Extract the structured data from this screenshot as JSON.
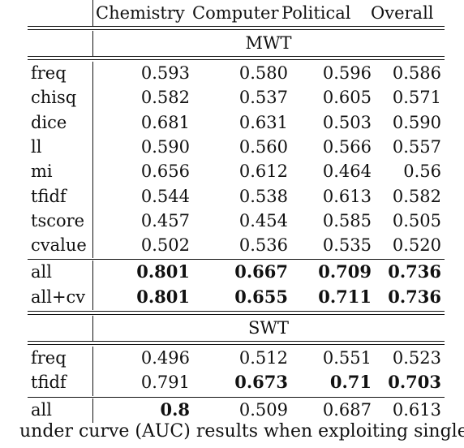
{
  "table": {
    "columns": [
      "Chemistry",
      "Computer",
      "Political",
      "Overall"
    ],
    "sections": [
      {
        "title": "MWT",
        "rows": [
          {
            "label": "freq",
            "values": [
              "0.593",
              "0.580",
              "0.596",
              "0.586"
            ],
            "bold": [
              false,
              false,
              false,
              false
            ]
          },
          {
            "label": "chisq",
            "values": [
              "0.582",
              "0.537",
              "0.605",
              "0.571"
            ],
            "bold": [
              false,
              false,
              false,
              false
            ]
          },
          {
            "label": "dice",
            "values": [
              "0.681",
              "0.631",
              "0.503",
              "0.590"
            ],
            "bold": [
              false,
              false,
              false,
              false
            ]
          },
          {
            "label": "ll",
            "values": [
              "0.590",
              "0.560",
              "0.566",
              "0.557"
            ],
            "bold": [
              false,
              false,
              false,
              false
            ]
          },
          {
            "label": "mi",
            "values": [
              "0.656",
              "0.612",
              "0.464",
              "0.56"
            ],
            "bold": [
              false,
              false,
              false,
              false
            ]
          },
          {
            "label": "tfidf",
            "values": [
              "0.544",
              "0.538",
              "0.613",
              "0.582"
            ],
            "bold": [
              false,
              false,
              false,
              false
            ]
          },
          {
            "label": "tscore",
            "values": [
              "0.457",
              "0.454",
              "0.585",
              "0.505"
            ],
            "bold": [
              false,
              false,
              false,
              false
            ]
          },
          {
            "label": "cvalue",
            "values": [
              "0.502",
              "0.536",
              "0.535",
              "0.520"
            ],
            "bold": [
              false,
              false,
              false,
              false
            ]
          }
        ],
        "summary_rows": [
          {
            "label": "all",
            "values": [
              "0.801",
              "0.667",
              "0.709",
              "0.736"
            ],
            "bold": [
              true,
              true,
              true,
              true
            ]
          },
          {
            "label": "all+cv",
            "values": [
              "0.801",
              "0.655",
              "0.711",
              "0.736"
            ],
            "bold": [
              true,
              true,
              true,
              true
            ]
          }
        ]
      },
      {
        "title": "SWT",
        "rows": [
          {
            "label": "freq",
            "values": [
              "0.496",
              "0.512",
              "0.551",
              "0.523"
            ],
            "bold": [
              false,
              false,
              false,
              false
            ]
          },
          {
            "label": "tfidf",
            "values": [
              "0.791",
              "0.673",
              "0.71",
              "0.703"
            ],
            "bold": [
              false,
              true,
              true,
              true
            ]
          }
        ],
        "summary_rows": [
          {
            "label": "all",
            "values": [
              "0.8",
              "0.509",
              "0.687",
              "0.613"
            ],
            "bold": [
              true,
              false,
              false,
              false
            ]
          }
        ]
      }
    ]
  },
  "caption": {
    "line1": "under curve (AUC) results when exploiting single"
  }
}
